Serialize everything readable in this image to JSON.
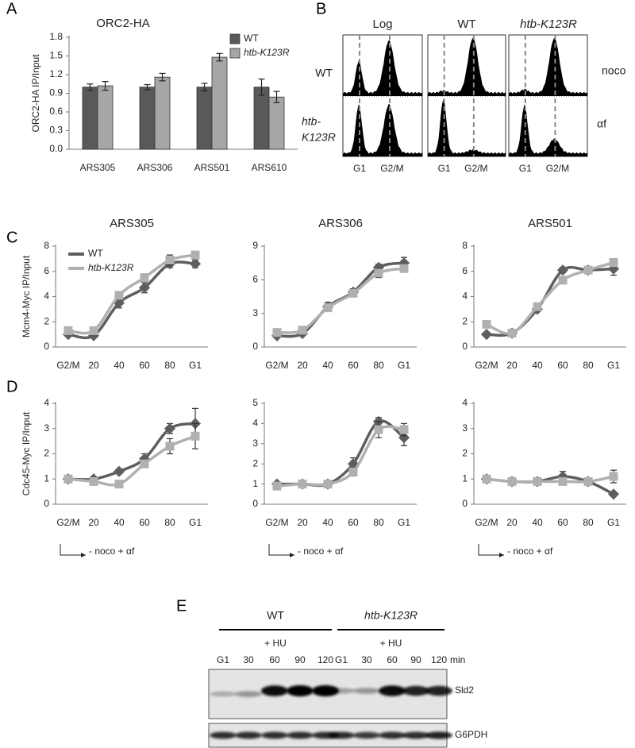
{
  "panel_labels": [
    "A",
    "B",
    "C",
    "D",
    "E"
  ],
  "chart_data": [
    {
      "type": "bar",
      "title": "ORC2-HA",
      "y_label": "ORC2-HA IP/Input",
      "categories": [
        "ARS305",
        "ARS306",
        "ARS501",
        "ARS610"
      ],
      "series": [
        {
          "name": "WT",
          "color": "#595959",
          "values": [
            1.0,
            1.0,
            1.0,
            1.0
          ],
          "errors": [
            0.05,
            0.04,
            0.06,
            0.13
          ]
        },
        {
          "name": "htb-K123R",
          "color": "#a6a6a6",
          "values": [
            1.02,
            1.16,
            1.48,
            0.84
          ],
          "errors": [
            0.07,
            0.06,
            0.06,
            0.09
          ]
        }
      ],
      "ylim": [
        0,
        1.8
      ],
      "yticks": [
        {
          "value": 0,
          "label": "0.0"
        },
        0.3,
        0.6,
        0.9,
        1.2,
        1.5,
        1.8
      ],
      "legend": "upper right"
    },
    {
      "type": "line",
      "title": "ARS305",
      "y_label": "Mcm4-Myc IP/Input",
      "categories": [
        "G2/M",
        "20",
        "40",
        "60",
        "80",
        "G1"
      ],
      "series": [
        {
          "name": "WT",
          "color": "#5e5e5e",
          "values": [
            1.0,
            0.9,
            3.5,
            4.7,
            6.6,
            6.6
          ],
          "errors": [
            0.1,
            0.1,
            0.4,
            0.4,
            0.3,
            0.3
          ]
        },
        {
          "name": "htb-K123R",
          "color": "#b0b0b0",
          "values": [
            1.3,
            1.3,
            4.1,
            5.5,
            6.9,
            7.3
          ],
          "errors": [
            0.2,
            0.1,
            0.2,
            0.3,
            0.4,
            0.2
          ]
        }
      ],
      "ylim": [
        0,
        8
      ],
      "yticks": [
        0,
        2,
        4,
        6,
        8
      ],
      "legend": "upper left"
    },
    {
      "type": "line",
      "title": "ARS306",
      "categories": [
        "G2/M",
        "20",
        "40",
        "60",
        "80",
        "G1"
      ],
      "series": [
        {
          "color": "#5e5e5e",
          "values": [
            1.0,
            1.2,
            3.6,
            4.9,
            7.1,
            7.5
          ],
          "errors": [
            0.1,
            0.1,
            0.4,
            0.3,
            0.3,
            0.5
          ]
        },
        {
          "color": "#b0b0b0",
          "values": [
            1.3,
            1.5,
            3.5,
            4.8,
            6.6,
            7.0
          ],
          "errors": [
            0.2,
            0.2,
            0.3,
            0.3,
            0.4,
            0.3
          ]
        }
      ],
      "ylim": [
        0,
        9
      ],
      "yticks": [
        0,
        3,
        6,
        9
      ]
    },
    {
      "type": "line",
      "title": "ARS501",
      "categories": [
        "G2/M",
        "20",
        "40",
        "60",
        "80",
        "G1"
      ],
      "series": [
        {
          "color": "#5e5e5e",
          "values": [
            1.0,
            1.1,
            3.0,
            6.1,
            6.1,
            6.2
          ],
          "errors": [
            0.1,
            0.1,
            0.2,
            0.2,
            0.2,
            0.5
          ]
        },
        {
          "color": "#b0b0b0",
          "values": [
            1.8,
            1.1,
            3.2,
            5.3,
            6.1,
            6.7
          ],
          "errors": [
            0.1,
            0.1,
            0.2,
            0.2,
            0.2,
            0.3
          ]
        }
      ],
      "ylim": [
        0,
        8
      ],
      "yticks": [
        0,
        2,
        4,
        6,
        8
      ]
    },
    {
      "type": "line",
      "y_label": "Cdc45-Myc IP/Input",
      "annotation": "- noco + αf",
      "categories": [
        "G2/M",
        "20",
        "40",
        "60",
        "80",
        "G1"
      ],
      "series": [
        {
          "color": "#5e5e5e",
          "values": [
            1.0,
            1.0,
            1.3,
            1.8,
            3.0,
            3.2
          ],
          "errors": [
            0.1,
            0.1,
            0.1,
            0.2,
            0.2,
            0.6
          ]
        },
        {
          "color": "#b0b0b0",
          "values": [
            1.0,
            0.9,
            0.8,
            1.6,
            2.3,
            2.7
          ],
          "errors": [
            0.1,
            0.1,
            0.1,
            0.1,
            0.3,
            0.5
          ]
        }
      ],
      "ylim": [
        0,
        4
      ],
      "yticks": [
        0,
        1,
        2,
        3,
        4
      ]
    },
    {
      "type": "line",
      "annotation": "- noco + αf",
      "categories": [
        "G2/M",
        "20",
        "40",
        "60",
        "80",
        "G1"
      ],
      "series": [
        {
          "color": "#5e5e5e",
          "values": [
            1.0,
            1.0,
            1.0,
            2.0,
            4.1,
            3.3
          ],
          "errors": [
            0.1,
            0.1,
            0.1,
            0.3,
            0.2,
            0.4
          ]
        },
        {
          "color": "#b0b0b0",
          "values": [
            0.9,
            1.0,
            1.0,
            1.6,
            3.7,
            3.7
          ],
          "errors": [
            0.1,
            0.1,
            0.1,
            0.2,
            0.4,
            0.3
          ]
        }
      ],
      "ylim": [
        0,
        5
      ],
      "yticks": [
        0,
        1,
        2,
        3,
        4,
        5
      ]
    },
    {
      "type": "line",
      "annotation": "- noco + αf",
      "categories": [
        "G2/M",
        "20",
        "40",
        "60",
        "80",
        "G1"
      ],
      "series": [
        {
          "color": "#5e5e5e",
          "values": [
            1.0,
            0.9,
            0.9,
            1.1,
            0.9,
            0.4
          ],
          "errors": [
            0.1,
            0.1,
            0.1,
            0.2,
            0.1,
            0.05
          ]
        },
        {
          "color": "#b0b0b0",
          "values": [
            1.0,
            0.9,
            0.9,
            0.9,
            0.9,
            1.1
          ],
          "errors": [
            0.1,
            0.1,
            0.1,
            0.1,
            0.1,
            0.25
          ]
        }
      ],
      "ylim": [
        0,
        4
      ],
      "yticks": [
        0,
        1,
        2,
        3,
        4
      ]
    }
  ],
  "flow": {
    "columns": [
      "Log",
      "WT",
      "htb-K123R"
    ],
    "rows": [
      {
        "lines": [
          "WT"
        ]
      },
      {
        "lines": [
          "htb-",
          "K123R"
        ]
      }
    ],
    "conditions": [
      "noco",
      "αf"
    ],
    "x_labels": [
      "G1",
      "G2/M"
    ]
  },
  "blot": {
    "groups": [
      {
        "name": "WT",
        "treatment": "+ HU"
      },
      {
        "name": "htb-K123R",
        "treatment": "+ HU"
      }
    ],
    "lanes": [
      "G1",
      "30",
      "60",
      "90",
      "120"
    ],
    "unit": "min",
    "bands": [
      "Sld2",
      "G6PDH"
    ]
  }
}
